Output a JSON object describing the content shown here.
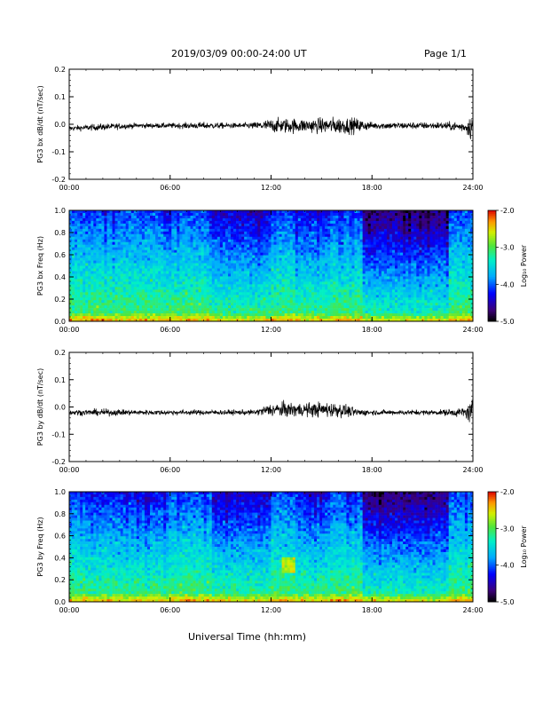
{
  "header": {
    "title": "2019/03/09  00:00-24:00 UT",
    "page": "Page 1/1"
  },
  "xlabel": "Universal Time (hh:mm)",
  "colorbar": {
    "label": "Log₁₀ Power",
    "ticks": [
      "-2.0",
      "-3.0",
      "-4.0",
      "-5.0"
    ],
    "range": [
      -5.0,
      -2.0
    ]
  },
  "chart_data": [
    {
      "type": "line",
      "ylabel": "PG3 bx dB/dt (nT/sec)",
      "ylim": [
        -0.2,
        0.2
      ],
      "yticks": [
        "0.2",
        "0.1",
        "0.0",
        "-0.1",
        "-0.2"
      ],
      "xticks": [
        "00:00",
        "06:00",
        "12:00",
        "18:00",
        "24:00"
      ],
      "xlim_hours": [
        0,
        24
      ],
      "series": [
        {
          "values": {
            "hour": [
              0,
              2,
              4,
              6,
              8,
              10,
              11,
              12,
              13,
              14,
              15,
              16,
              17,
              18,
              20,
              22,
              23.5,
              24
            ],
            "baseline": [
              -0.015,
              -0.01,
              -0.005,
              -0.005,
              -0.005,
              -0.005,
              -0.005,
              -0.005,
              -0.005,
              -0.005,
              -0.005,
              -0.005,
              -0.005,
              -0.005,
              -0.005,
              -0.005,
              -0.01,
              -0.01
            ],
            "amplitude": [
              0.015,
              0.02,
              0.015,
              0.015,
              0.02,
              0.015,
              0.02,
              0.04,
              0.045,
              0.04,
              0.045,
              0.05,
              0.045,
              0.02,
              0.02,
              0.02,
              0.03,
              0.09
            ]
          }
        }
      ]
    },
    {
      "type": "heatmap",
      "ylabel": "PG3 bx Freq (Hz)",
      "ylim": [
        0.0,
        1.0
      ],
      "yticks": [
        "1.0",
        "0.8",
        "0.6",
        "0.4",
        "0.2",
        "0.0"
      ],
      "xticks": [
        "00:00",
        "06:00",
        "12:00",
        "18:00",
        "24:00"
      ],
      "xlim_hours": [
        0,
        24
      ],
      "zlim": [
        -5.0,
        -2.0
      ]
    },
    {
      "type": "line",
      "ylabel": "PG3 by dB/dt (nT/sec)",
      "ylim": [
        -0.2,
        0.2
      ],
      "yticks": [
        "0.2",
        "0.1",
        "0.0",
        "-0.1",
        "-0.2"
      ],
      "xticks": [
        "00:00",
        "06:00",
        "12:00",
        "18:00",
        "24:00"
      ],
      "xlim_hours": [
        0,
        24
      ],
      "series": [
        {
          "values": {
            "hour": [
              0,
              2,
              4,
              6,
              8,
              10,
              11,
              12,
              13,
              14,
              15,
              16,
              17,
              18,
              20,
              22,
              23.5,
              24
            ],
            "baseline": [
              -0.02,
              -0.02,
              -0.02,
              -0.02,
              -0.02,
              -0.02,
              -0.02,
              -0.01,
              -0.01,
              -0.01,
              -0.01,
              -0.01,
              -0.02,
              -0.02,
              -0.02,
              -0.02,
              -0.02,
              -0.02
            ],
            "amplitude": [
              0.015,
              0.02,
              0.015,
              0.015,
              0.015,
              0.015,
              0.015,
              0.04,
              0.045,
              0.04,
              0.045,
              0.045,
              0.025,
              0.015,
              0.015,
              0.015,
              0.03,
              0.08
            ]
          }
        }
      ]
    },
    {
      "type": "heatmap",
      "ylabel": "PG3 by Freq (Hz)",
      "ylim": [
        0.0,
        1.0
      ],
      "yticks": [
        "1.0",
        "0.8",
        "0.6",
        "0.4",
        "0.2",
        "0.0"
      ],
      "xticks": [
        "00:00",
        "06:00",
        "12:00",
        "18:00",
        "24:00"
      ],
      "xlim_hours": [
        0,
        24
      ],
      "zlim": [
        -5.0,
        -2.0
      ]
    }
  ]
}
